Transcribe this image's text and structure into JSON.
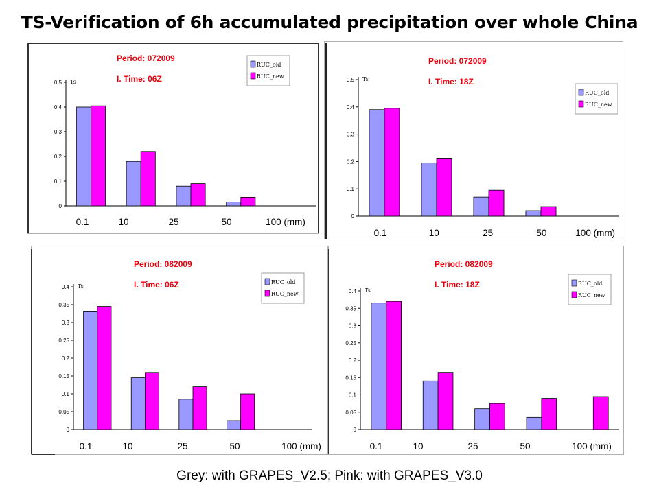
{
  "title": "TS-Verification of 6h accumulated precipitation over whole China",
  "caption": "Grey: with GRAPES_V2.5; Pink: with GRAPES_V3.0",
  "colors": {
    "old": "#9999ff",
    "new": "#ff00ff",
    "annotation": "#e8000b"
  },
  "chart_data": [
    {
      "type": "bar",
      "period": "Period: 072009",
      "itime": "I. Time: 06Z",
      "ylabel": "Ts",
      "categories": [
        "0.1",
        "10",
        "25",
        "50",
        "100 (mm)"
      ],
      "ylim": [
        0,
        0.5
      ],
      "yticks": [
        "0",
        "0.1",
        "0.2",
        "0.3",
        "0.4",
        "0.5"
      ],
      "legend_position": "top-right",
      "series": [
        {
          "name": "RUC_old",
          "values": [
            0.4,
            0.18,
            0.08,
            0.015,
            0
          ]
        },
        {
          "name": "RUC_new",
          "values": [
            0.405,
            0.22,
            0.09,
            0.035,
            0
          ]
        }
      ]
    },
    {
      "type": "bar",
      "period": "Period: 072009",
      "itime": "I. Time: 18Z",
      "ylabel": "Ts",
      "categories": [
        "0.1",
        "10",
        "25",
        "50",
        "100 (mm)"
      ],
      "ylim": [
        0,
        0.5
      ],
      "yticks": [
        "0",
        "0.1",
        "0.2",
        "0.3",
        "0.4",
        "0.5"
      ],
      "legend_position": "top-right",
      "series": [
        {
          "name": "RUC_old",
          "values": [
            0.39,
            0.195,
            0.07,
            0.02,
            0
          ]
        },
        {
          "name": "RUC_new",
          "values": [
            0.395,
            0.21,
            0.095,
            0.035,
            0
          ]
        }
      ]
    },
    {
      "type": "bar",
      "period": "Period: 082009",
      "itime": "I. Time: 06Z",
      "ylabel": "Ts",
      "categories": [
        "0.1",
        "10",
        "25",
        "50",
        "100 (mm)"
      ],
      "ylim": [
        0,
        0.4
      ],
      "yticks": [
        "0",
        "0.05",
        "0.1",
        "0.15",
        "0.2",
        "0.25",
        "0.3",
        "0.35",
        "0.4"
      ],
      "legend_position": "top-right",
      "series": [
        {
          "name": "RUC_old",
          "values": [
            0.33,
            0.145,
            0.085,
            0.025,
            0
          ]
        },
        {
          "name": "RUC_new",
          "values": [
            0.345,
            0.16,
            0.12,
            0.1,
            0
          ]
        }
      ]
    },
    {
      "type": "bar",
      "period": "Period: 082009",
      "itime": "I. Time: 18Z",
      "ylabel": "Ts",
      "categories": [
        "0.1",
        "10",
        "25",
        "50",
        "100 (mm)"
      ],
      "ylim": [
        0,
        0.4
      ],
      "yticks": [
        "0",
        "0.05",
        "0.1",
        "0.15",
        "0.2",
        "0.25",
        "0.3",
        "0.35",
        "0.4"
      ],
      "legend_position": "top-right",
      "series": [
        {
          "name": "RUC_old",
          "values": [
            0.365,
            0.14,
            0.06,
            0.035,
            0
          ]
        },
        {
          "name": "RUC_new",
          "values": [
            0.37,
            0.165,
            0.075,
            0.09,
            0.095
          ]
        }
      ]
    }
  ]
}
